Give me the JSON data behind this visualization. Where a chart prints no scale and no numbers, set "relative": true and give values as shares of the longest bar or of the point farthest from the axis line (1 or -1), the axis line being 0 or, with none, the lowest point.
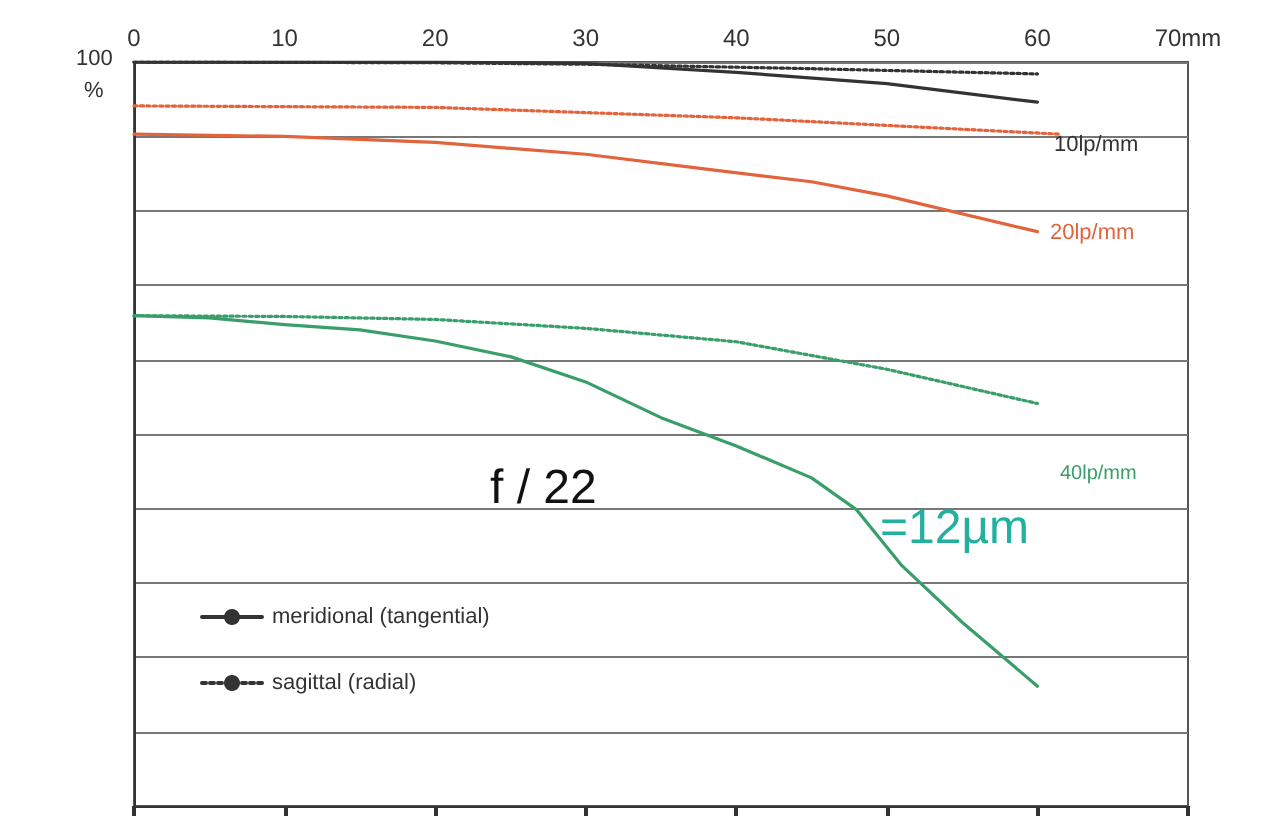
{
  "chart_data": {
    "type": "line",
    "relative": true,
    "xlim": [
      0,
      70
    ],
    "xticks": [
      0,
      10,
      20,
      30,
      40,
      50,
      60,
      {
        "value": 70,
        "label": "70mm"
      }
    ],
    "grid": "y",
    "legend": "bottom left",
    "marker": "none",
    "series": [
      {
        "name": "meridional (tangential)",
        "color": "#333333",
        "line_style": "solid",
        "x": [
          0,
          10,
          20,
          30,
          40,
          50,
          60
        ],
        "values": [
          1,
          1,
          1,
          0.998,
          0.986,
          0.971,
          0.946
        ]
      },
      {
        "name": "sagittal (radial)",
        "color": "#333333",
        "line_style": "dotted",
        "x": [
          0,
          20,
          30,
          45,
          60
        ],
        "values": [
          1,
          0.999,
          0.997,
          0.991,
          0.984
        ]
      },
      {
        "color": "#e2643c",
        "line_style": "solid",
        "x": [
          0,
          10,
          20,
          30,
          38,
          45,
          50,
          60
        ],
        "values": [
          0.903,
          0.9,
          0.892,
          0.876,
          0.856,
          0.839,
          0.82,
          0.772
        ]
      },
      {
        "color": "#e2643c",
        "line_style": "dotted",
        "x": [
          0,
          20,
          40,
          61.5
        ],
        "values": [
          0.941,
          0.939,
          0.925,
          0.903
        ]
      },
      {
        "color": "#3a9e6a",
        "line_style": "solid",
        "x": [
          0,
          5,
          10,
          15,
          20,
          25,
          30,
          35,
          40,
          45,
          48,
          51,
          55,
          60
        ],
        "values": [
          0.659,
          0.656,
          0.647,
          0.64,
          0.625,
          0.604,
          0.57,
          0.522,
          0.484,
          0.441,
          0.398,
          0.323,
          0.247,
          0.161
        ]
      },
      {
        "color": "#3a9e6a",
        "line_style": "dotted",
        "x": [
          0,
          10,
          20,
          30,
          40,
          50,
          60
        ],
        "values": [
          0.659,
          0.658,
          0.654,
          0.642,
          0.624,
          0.587,
          0.541
        ]
      }
    ],
    "annotations": [
      "100",
      "%",
      "10lp/mm",
      "20lp/mm",
      "40lp/mm",
      "f / 22",
      "=12µm"
    ]
  }
}
